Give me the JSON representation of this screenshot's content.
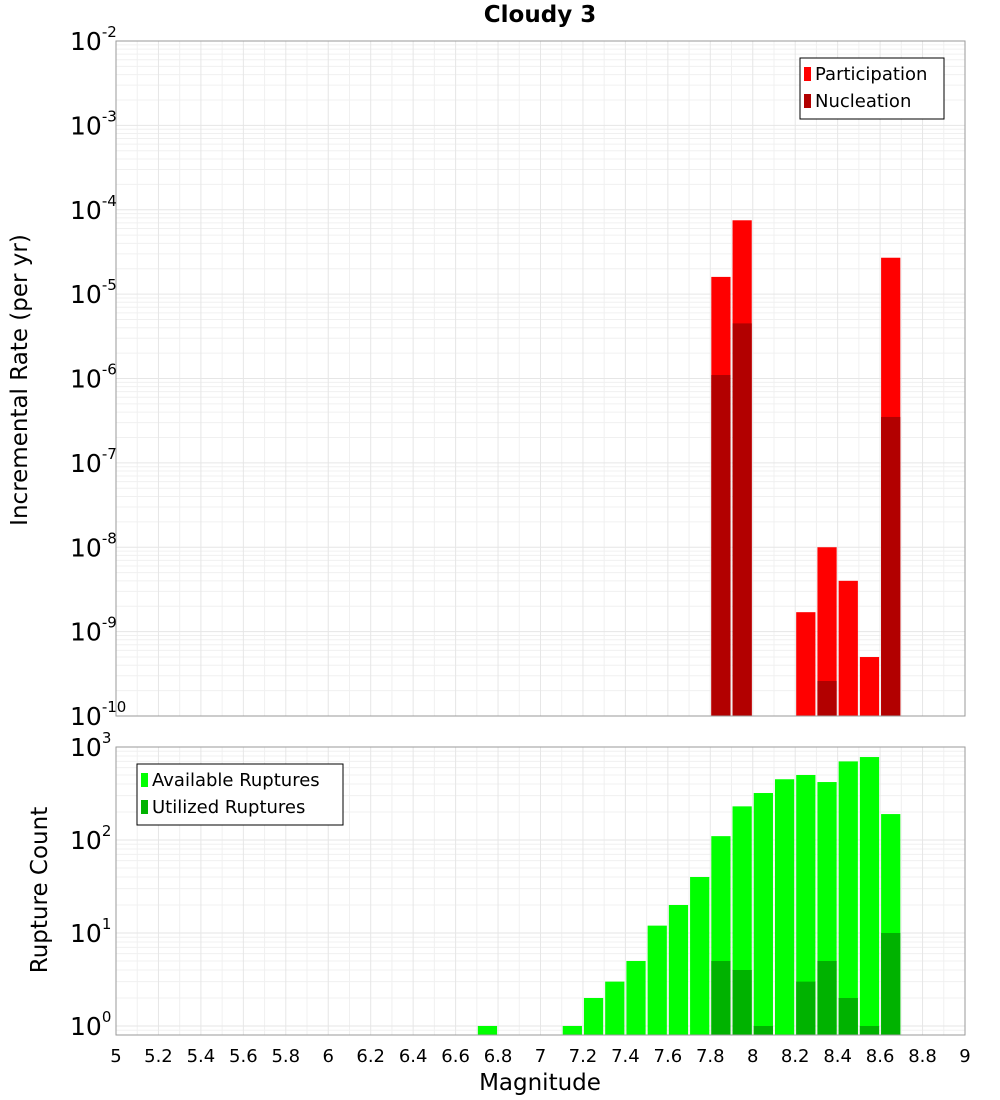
{
  "chart_data": [
    {
      "type": "bar",
      "title": "Cloudy 3",
      "ylabel": "Incremental Rate (per yr)",
      "xlabel": "",
      "yscale": "log",
      "ylim": [
        1e-10,
        0.01
      ],
      "xlim": [
        5,
        9
      ],
      "bar_width": 0.1,
      "y_ticks": [
        {
          "base": "10",
          "exp": "-2",
          "value": 0.01
        },
        {
          "base": "10",
          "exp": "-3",
          "value": 0.001
        },
        {
          "base": "10",
          "exp": "-4",
          "value": 0.0001
        },
        {
          "base": "10",
          "exp": "-5",
          "value": 1e-05
        },
        {
          "base": "10",
          "exp": "-6",
          "value": 1e-06
        },
        {
          "base": "10",
          "exp": "-7",
          "value": 1e-07
        },
        {
          "base": "10",
          "exp": "-8",
          "value": 1e-08
        },
        {
          "base": "10",
          "exp": "-9",
          "value": 1e-09
        },
        {
          "base": "10",
          "exp": "-10",
          "value": 1e-10
        }
      ],
      "legend": {
        "placement": "top-right"
      },
      "series": [
        {
          "name": "Participation",
          "color": "#ff0000",
          "x": [
            7.85,
            7.95,
            8.25,
            8.35,
            8.45,
            8.55,
            8.65
          ],
          "values": [
            1.6e-05,
            7.5e-05,
            1.7e-09,
            1e-08,
            4e-09,
            5e-10,
            2.7e-05
          ]
        },
        {
          "name": "Nucleation",
          "color": "#b20000",
          "x": [
            7.85,
            7.95,
            8.35,
            8.65
          ],
          "values": [
            1.1e-06,
            4.5e-06,
            2.6e-10,
            3.5e-07
          ]
        }
      ]
    },
    {
      "type": "bar",
      "title": "",
      "ylabel": "Rupture Count",
      "xlabel": "Magnitude",
      "yscale": "log",
      "ylim": [
        0.8,
        1000
      ],
      "xlim": [
        5,
        9
      ],
      "bar_width": 0.1,
      "y_ticks": [
        {
          "base": "10",
          "exp": "3",
          "value": 1000
        },
        {
          "base": "10",
          "exp": "2",
          "value": 100
        },
        {
          "base": "10",
          "exp": "1",
          "value": 10
        },
        {
          "base": "10",
          "exp": "0",
          "value": 1
        }
      ],
      "x_ticks": [
        "5",
        "5.2",
        "5.4",
        "5.6",
        "5.8",
        "6",
        "6.2",
        "6.4",
        "6.6",
        "6.8",
        "7",
        "7.2",
        "7.4",
        "7.6",
        "7.8",
        "8",
        "8.2",
        "8.4",
        "8.6",
        "8.8",
        "9"
      ],
      "legend": {
        "placement": "top-left"
      },
      "series": [
        {
          "name": "Available Ruptures",
          "color": "#00ff00",
          "x": [
            6.75,
            7.15,
            7.25,
            7.35,
            7.45,
            7.55,
            7.65,
            7.75,
            7.85,
            7.95,
            8.05,
            8.15,
            8.25,
            8.35,
            8.45,
            8.55,
            8.65
          ],
          "values": [
            1,
            1,
            2,
            3,
            5,
            12,
            20,
            40,
            110,
            230,
            320,
            450,
            500,
            420,
            700,
            780,
            190
          ]
        },
        {
          "name": "Utilized Ruptures",
          "color": "#00b200",
          "x": [
            7.85,
            7.95,
            8.05,
            8.25,
            8.35,
            8.45,
            8.55,
            8.65
          ],
          "values": [
            5,
            4,
            1,
            3,
            5,
            2,
            1,
            10
          ]
        }
      ]
    }
  ]
}
